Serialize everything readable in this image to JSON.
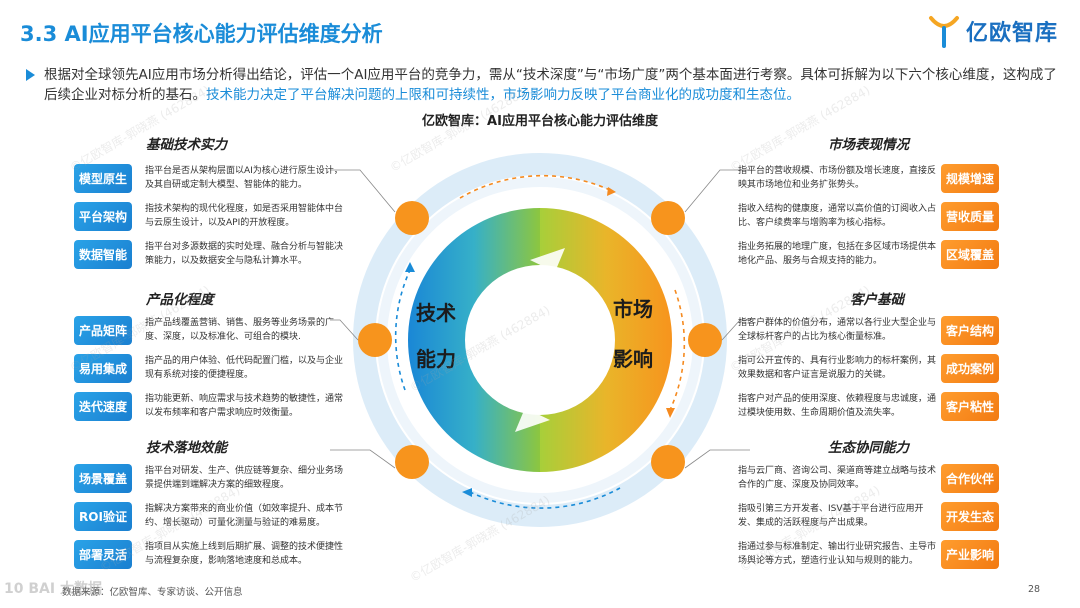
{
  "header": {
    "title": "3.3 AI应用平台核心能力评估维度分析",
    "logo_text": "亿欧智库"
  },
  "intro": {
    "text_main": "根据对全球领先AI应用市场分析得出结论，评估一个AI应用平台的竞争力，需从“技术深度”与“市场广度”两个基本面进行考察。具体可拆解为以下六个核心维度，这构成了后续企业对标分析的基石。",
    "text_highlight": "技术能力决定了平台解决问题的上限和可持续性，市场影响力反映了平台商业化的成功度和生态位。"
  },
  "diagram": {
    "subtitle": "亿欧智库：AI应用平台核心能力评估维度",
    "center_left_top": "技术",
    "center_left_bottom": "能力",
    "center_right_top": "市场",
    "center_right_bottom": "影响"
  },
  "sections": {
    "jichu": {
      "title": "基础技术实力",
      "items": [
        {
          "tag": "模型原生",
          "desc": "指平台是否从架构层面以AI为核心进行原生设计，及其自研或定制大模型、智能体的能力。"
        },
        {
          "tag": "平台架构",
          "desc": "指技术架构的现代化程度，如是否采用智能体中台与云原生设计，以及API的开放程度。"
        },
        {
          "tag": "数据智能",
          "desc": "指平台对多源数据的实时处理、融合分析与智能决策能力，以及数据安全与隐私计算水平。"
        }
      ]
    },
    "chanpin": {
      "title": "产品化程度",
      "items": [
        {
          "tag": "产品矩阵",
          "desc": "指产品线覆盖营销、销售、服务等业务场景的广度、深度，以及标准化、可组合的模块."
        },
        {
          "tag": "易用集成",
          "desc": "指产品的用户体验、低代码配置门槛，以及与企业现有系统对接的便捷程度。"
        },
        {
          "tag": "迭代速度",
          "desc": "指功能更新、响应需求与技术趋势的敏捷性，通常以发布频率和客户需求响应时效衡量。"
        }
      ]
    },
    "luodi": {
      "title": "技术落地效能",
      "items": [
        {
          "tag": "场景覆盖",
          "desc": "指平台对研发、生产、供应链等复杂、细分业务场景提供端到端解决方案的细致程度。"
        },
        {
          "tag": "ROI验证",
          "desc": "指解决方案带来的商业价值（如效率提升、成本节约、增长驱动）可量化测量与验证的难易度。"
        },
        {
          "tag": "部署灵活",
          "desc": "指项目从实施上线到后期扩展、调整的技术便捷性与流程复杂度，影响落地速度和总成本。"
        }
      ]
    },
    "shichang": {
      "title": "市场表现情况",
      "items": [
        {
          "tag": "规模增速",
          "desc": "指平台的营收规模、市场份额及增长速度，直接反映其市场地位和业务扩张势头。"
        },
        {
          "tag": "营收质量",
          "desc": "指收入结构的健康度，通常以高价值的订阅收入占比、客户续费率与增购率为核心指标。"
        },
        {
          "tag": "区域覆盖",
          "desc": "指业务拓展的地理广度，包括在多区域市场提供本地化产品、服务与合规支持的能力。"
        }
      ]
    },
    "kehu": {
      "title": "客户基础",
      "items": [
        {
          "tag": "客户结构",
          "desc": "指客户群体的价值分布，通常以各行业大型企业与全球标杆客户的占比为核心衡量标准。"
        },
        {
          "tag": "成功案例",
          "desc": "指可公开宣传的、具有行业影响力的标杆案例，其效果数据和客户证言是说服力的关键。"
        },
        {
          "tag": "客户粘性",
          "desc": "指客户对产品的使用深度、依赖程度与忠诚度，通过模块使用数、生命周期价值及流失率。"
        }
      ]
    },
    "shengtai": {
      "title": "生态协同能力",
      "items": [
        {
          "tag": "合作伙伴",
          "desc": "指与云厂商、咨询公司、渠道商等建立战略与技术合作的广度、深度及协同效率。"
        },
        {
          "tag": "开发生态",
          "desc": "指吸引第三方开发者、ISV基于平台进行应用开发、集成的活跃程度与产出成果。"
        },
        {
          "tag": "产业影响",
          "desc": "指通过参与标准制定、输出行业研究报告、主导市场舆论等方式，塑造行业认知与规则的能力。"
        }
      ]
    }
  },
  "footer": {
    "source": "数据来源：亿欧智库、专家访谈、公开信息",
    "page": "28"
  },
  "watermark": {
    "text": "©亿欧智库-郭晓燕 (462884)",
    "corner": "10 BAI 大数据"
  },
  "colors": {
    "accent_blue": "#1a8cd8",
    "accent_orange": "#f58a1f",
    "ring_blue": "#1f8fd8",
    "ring_green": "#8dc63f",
    "ring_orange": "#f7941d"
  }
}
